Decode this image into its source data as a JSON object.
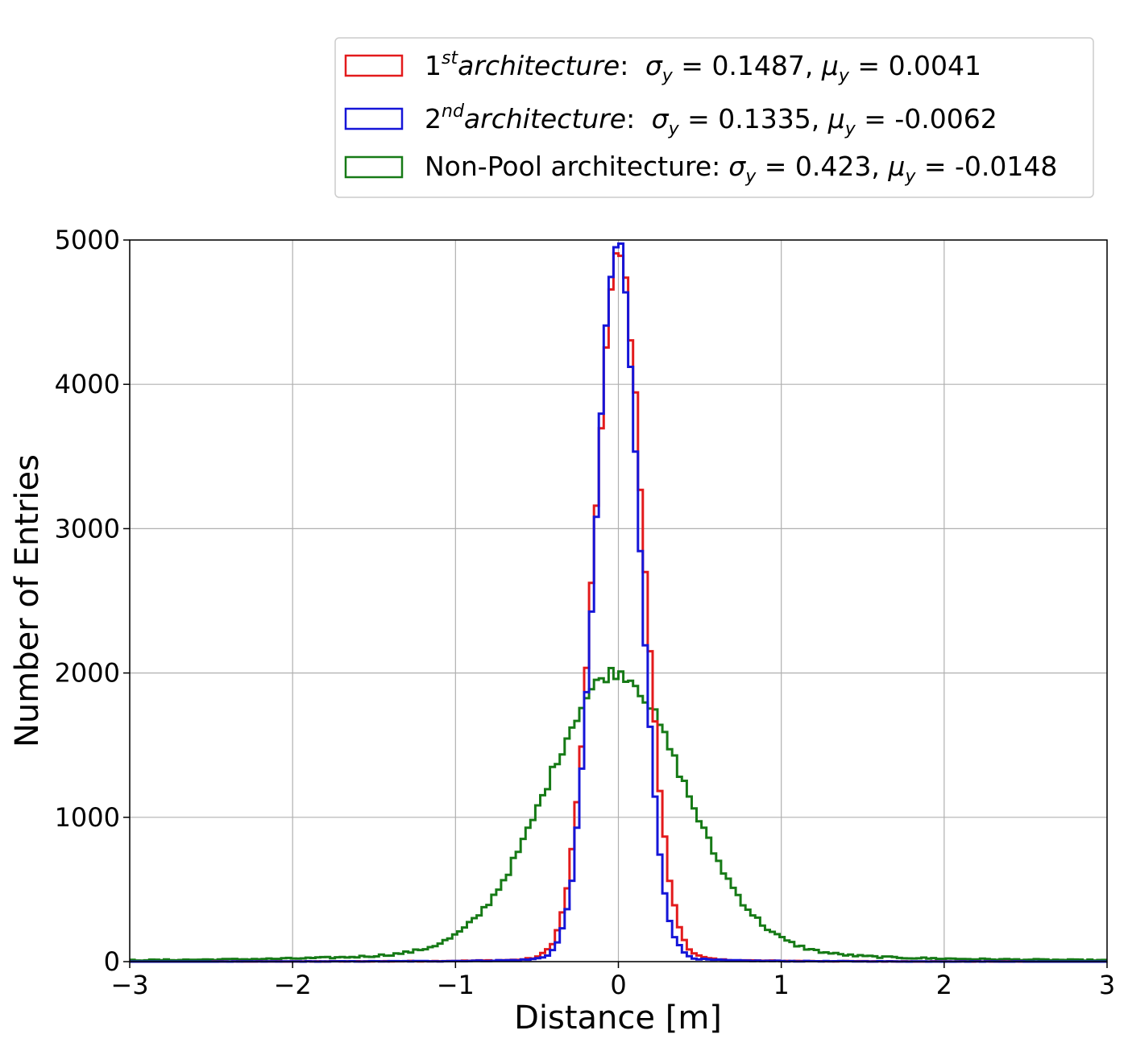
{
  "chart_data": {
    "type": "histogram",
    "xlabel": "Distance [m]",
    "ylabel": "Number of Entries",
    "xlim": [
      -3,
      3
    ],
    "ylim": [
      0,
      5000
    ],
    "xticks": [
      -3,
      -2,
      -1,
      0,
      1,
      2,
      3
    ],
    "xtick_labels": [
      "−3",
      "−2",
      "−1",
      "0",
      "1",
      "2",
      "3"
    ],
    "yticks": [
      0,
      1000,
      2000,
      3000,
      4000,
      5000
    ],
    "ytick_labels": [
      "0",
      "1000",
      "2000",
      "3000",
      "4000",
      "5000"
    ],
    "grid": true,
    "legend_position": "upper-right-outside",
    "bin_width": 0.03,
    "series": [
      {
        "name": "1st architecture",
        "label_parts": {
          "num": "1",
          "sup": "st",
          "word": "architecture",
          "sigma": "0.1487",
          "mu": "0.0041"
        },
        "color": "#e31a1c",
        "sigma": 0.1487,
        "mu": 0.0041,
        "peak": 4750
      },
      {
        "name": "2nd architecture",
        "label_parts": {
          "num": "2",
          "sup": "nd",
          "word": "architecture",
          "sigma": "0.1335",
          "mu": "-0.0062"
        },
        "color": "#1515d8",
        "sigma": 0.1335,
        "mu": -0.0062,
        "peak": 4820
      },
      {
        "name": "Non-Pool architecture",
        "label_parts": {
          "prefix": "Non-Pool architecture:",
          "sigma": "0.423",
          "mu": "-0.0148"
        },
        "color": "#167a16",
        "sigma": 0.423,
        "mu": -0.0148,
        "peak": 1700
      }
    ]
  }
}
